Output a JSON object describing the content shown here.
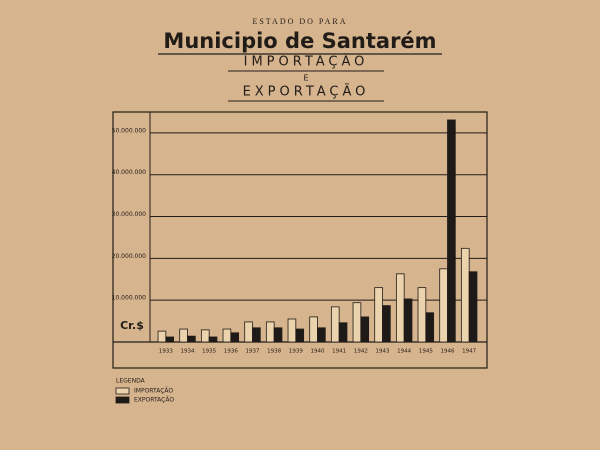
{
  "chart_data": {
    "type": "bar",
    "supertitle": "ESTADO DO PARA",
    "title": "Municipio de Santarém",
    "subtitle": [
      "IMPORTAÇÃO",
      "E",
      "EXPORTAÇÃO"
    ],
    "unit_label": "Cr.$",
    "legend_title": "LEGENDA",
    "legend_position": "bottom-left",
    "grid": true,
    "categories": [
      "1933",
      "1934",
      "1935",
      "1936",
      "1937",
      "1938",
      "1939",
      "1940",
      "1941",
      "1942",
      "1943",
      "1944",
      "1945",
      "1946",
      "1947"
    ],
    "series": [
      {
        "name": "IMPORTAÇÃO",
        "color": "#ead3ad",
        "values": [
          2600000,
          3100000,
          2900000,
          3100000,
          4800000,
          4800000,
          5500000,
          6000000,
          8400000,
          9400000,
          13000000,
          16300000,
          13000000,
          17500000,
          22400000
        ]
      },
      {
        "name": "EXPORTAÇÃO",
        "color": "#1e1a17",
        "values": [
          1200000,
          1400000,
          1200000,
          2200000,
          3400000,
          3400000,
          3100000,
          3400000,
          4600000,
          6000000,
          8700000,
          10300000,
          7000000,
          53100000,
          16800000
        ]
      }
    ],
    "ylim": [
      0,
      55000000
    ],
    "yticks": [
      {
        "value": 10000000,
        "label": "10.000.000"
      },
      {
        "value": 20000000,
        "label": "20.000.000"
      },
      {
        "value": 30000000,
        "label": "30.000.000"
      },
      {
        "value": 40000000,
        "label": "40.000.000"
      },
      {
        "value": 50000000,
        "label": "50.000.000"
      }
    ]
  }
}
